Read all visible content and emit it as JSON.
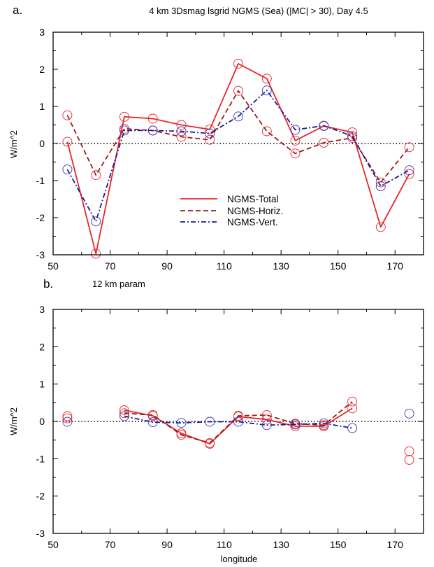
{
  "colors": {
    "total": "#e8262a",
    "horiz": "#9e1b1b",
    "vert": "#1a1a8c",
    "vert_marker": "#3838b8",
    "zero_line": "#000000",
    "frame": "#000000"
  },
  "chart_data": [
    {
      "type": "line",
      "panel_label": "a.",
      "title": "4 km 3Dsmag lsgrid NGMS (Sea) (|MC| > 30), Day 4.5",
      "xlabel": "",
      "ylabel": "W/m^2",
      "xlim": [
        50,
        180
      ],
      "ylim": [
        -3,
        3
      ],
      "xticks": [
        50,
        70,
        90,
        110,
        130,
        150,
        170
      ],
      "yticks": [
        -3,
        -2,
        -1,
        0,
        1,
        2,
        3
      ],
      "zero_line": "dotted",
      "grid": false,
      "legend": {
        "placement": "center-bottom",
        "entries": [
          "NGMS-Total",
          "NGMS-Horiz.",
          "NGMS-Vert."
        ]
      },
      "x": [
        55,
        65,
        75,
        85,
        95,
        105,
        115,
        125,
        135,
        145,
        155,
        165,
        175
      ],
      "series": [
        {
          "name": "NGMS-Total",
          "style": "solid",
          "color_key": "total",
          "values": [
            0.05,
            -2.97,
            0.72,
            0.67,
            0.5,
            0.38,
            2.15,
            1.75,
            0.08,
            0.47,
            0.3,
            -2.25,
            -0.82
          ]
        },
        {
          "name": "NGMS-Horiz.",
          "style": "dashed",
          "color_key": "horiz",
          "values": [
            0.76,
            -0.85,
            0.4,
            0.35,
            0.18,
            0.1,
            1.42,
            0.33,
            -0.27,
            0.02,
            0.15,
            -1.05,
            -0.1
          ]
        },
        {
          "name": "NGMS-Vert.",
          "style": "dashdot",
          "color_key": "vert",
          "values": [
            -0.7,
            -2.1,
            0.35,
            0.35,
            0.33,
            0.27,
            0.73,
            1.43,
            0.37,
            0.48,
            0.2,
            -1.15,
            -0.72
          ]
        }
      ]
    },
    {
      "type": "line",
      "panel_label": "b.",
      "title": "12 km param",
      "xlabel": "longitude",
      "ylabel": "W/m^2",
      "xlim": [
        50,
        180
      ],
      "ylim": [
        -3,
        3
      ],
      "xticks": [
        50,
        70,
        90,
        110,
        130,
        150,
        170
      ],
      "yticks": [
        -3,
        -2,
        -1,
        0,
        1,
        2,
        3
      ],
      "zero_line": "dotted",
      "grid": false,
      "x": [
        55,
        65,
        75,
        85,
        95,
        105,
        115,
        125,
        135,
        145,
        155,
        165,
        175
      ],
      "series": [
        {
          "name": "NGMS-Total",
          "style": "solid",
          "color_key": "total",
          "values": [
            0.14,
            null,
            0.3,
            0.15,
            -0.32,
            -0.6,
            0.13,
            0.05,
            -0.13,
            -0.13,
            0.35,
            null,
            -0.8
          ]
        },
        {
          "name": "NGMS-Horiz.",
          "style": "dashed",
          "color_key": "horiz",
          "values": [
            0.08,
            null,
            0.22,
            0.17,
            -0.36,
            -0.58,
            0.15,
            0.17,
            -0.06,
            -0.1,
            0.53,
            null,
            -1.03
          ]
        },
        {
          "name": "NGMS-Vert.",
          "style": "dashdot",
          "color_key": "vert",
          "values": [
            -0.01,
            null,
            0.14,
            -0.02,
            -0.04,
            -0.01,
            -0.01,
            -0.1,
            -0.08,
            -0.05,
            -0.18,
            null,
            0.21
          ]
        }
      ]
    }
  ]
}
